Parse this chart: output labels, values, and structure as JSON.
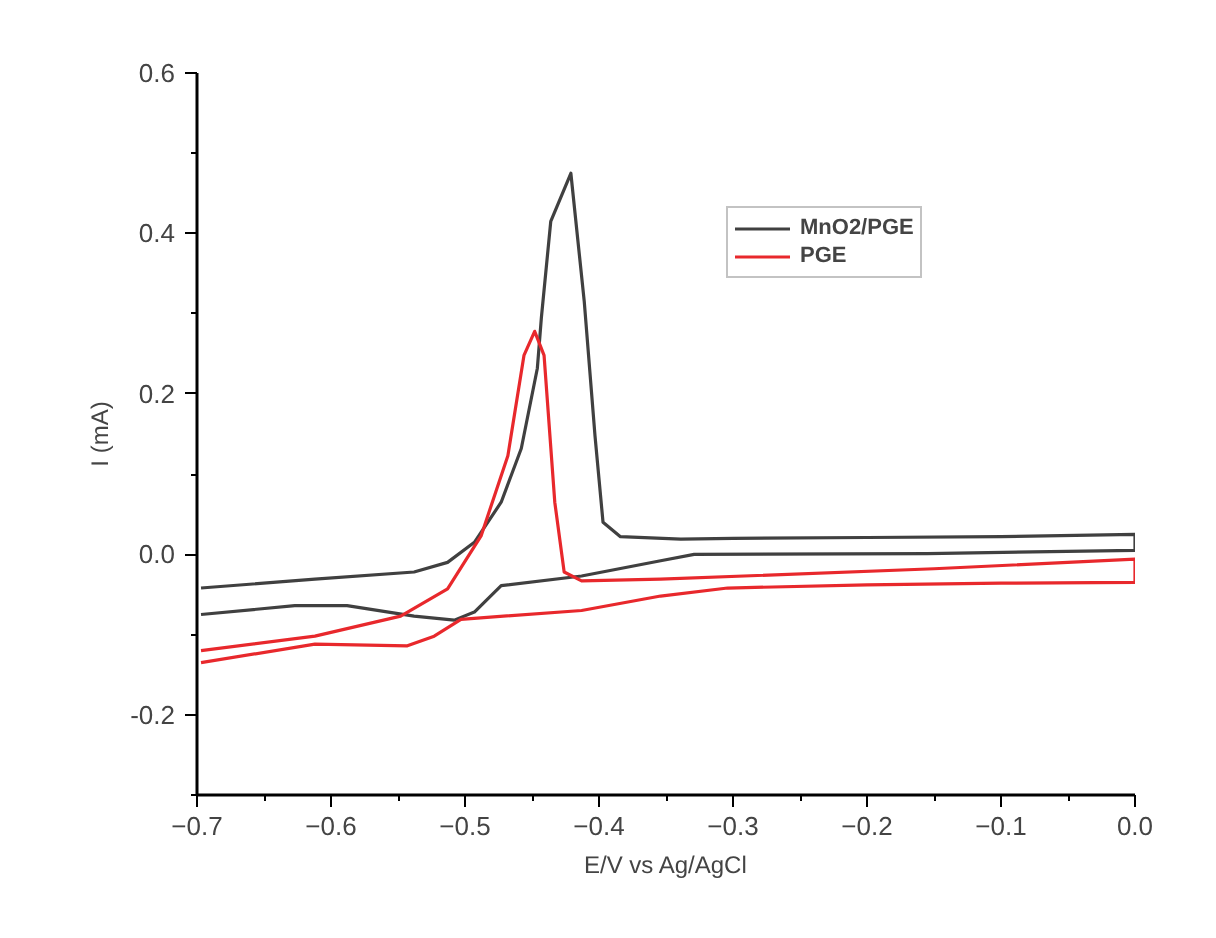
{
  "chart_data": {
    "type": "line",
    "xlabel": "E/V vs Ag/AgCl",
    "ylabel": "I (mA)",
    "xlim": [
      -0.7,
      0.0
    ],
    "ylim": [
      -0.3,
      0.6
    ],
    "xticks": [
      {
        "value": -0.7,
        "label": "−0.7"
      },
      {
        "value": -0.65,
        "label": null
      },
      {
        "value": -0.6,
        "label": "−0.6"
      },
      {
        "value": -0.55,
        "label": null
      },
      {
        "value": -0.5,
        "label": "−0.5"
      },
      {
        "value": -0.45,
        "label": null
      },
      {
        "value": -0.4,
        "label": "−0.4"
      },
      {
        "value": -0.35,
        "label": null
      },
      {
        "value": -0.3,
        "label": "−0.3"
      },
      {
        "value": -0.25,
        "label": null
      },
      {
        "value": -0.2,
        "label": "−0.2"
      },
      {
        "value": -0.15,
        "label": null
      },
      {
        "value": -0.1,
        "label": "−0.1"
      },
      {
        "value": -0.05,
        "label": null
      },
      {
        "value": 0.0,
        "label": "0.0"
      }
    ],
    "yticks": [
      {
        "value": -0.3,
        "label": null
      },
      {
        "value": -0.2,
        "label": "-0.2"
      },
      {
        "value": -0.1,
        "label": null
      },
      {
        "value": 0.0,
        "label": "0.0"
      },
      {
        "value": 0.1,
        "label": null
      },
      {
        "value": 0.2,
        "label": "0.2"
      },
      {
        "value": 0.3,
        "label": null
      },
      {
        "value": 0.4,
        "label": "0.4"
      },
      {
        "value": 0.5,
        "label": null
      },
      {
        "value": 0.6,
        "label": "0.6"
      }
    ],
    "grid": false,
    "legend": "top right",
    "line_style": "solid",
    "marker": "none",
    "series": [
      {
        "name": "MnO2/PGE",
        "color": "#404040",
        "x": [
          -0.697,
          -0.612,
          -0.538,
          -0.513,
          -0.493,
          -0.473,
          -0.458,
          -0.446,
          -0.443,
          -0.436,
          -0.421,
          -0.411,
          -0.403,
          -0.397,
          -0.384,
          -0.339,
          -0.3,
          -0.2,
          -0.1,
          0.0,
          0.0,
          -0.155,
          -0.329,
          -0.354,
          -0.413,
          -0.473,
          -0.493,
          -0.508,
          -0.538,
          -0.588,
          -0.627,
          -0.697
        ],
        "values": [
          -0.042,
          -0.031,
          -0.022,
          -0.01,
          0.015,
          0.065,
          0.132,
          0.232,
          0.295,
          0.415,
          0.475,
          0.315,
          0.148,
          0.04,
          0.022,
          0.019,
          0.02,
          0.021,
          0.022,
          0.025,
          0.005,
          0.001,
          0.0,
          -0.008,
          -0.027,
          -0.039,
          -0.072,
          -0.082,
          -0.077,
          -0.064,
          -0.064,
          -0.075
        ]
      },
      {
        "name": "PGE",
        "color": "#e8282c",
        "x": [
          -0.697,
          -0.612,
          -0.548,
          -0.513,
          -0.488,
          -0.468,
          -0.456,
          -0.448,
          -0.441,
          -0.433,
          -0.426,
          -0.413,
          -0.354,
          -0.15,
          0.0,
          0.0,
          -0.1,
          -0.2,
          -0.304,
          -0.354,
          -0.413,
          -0.503,
          -0.523,
          -0.543,
          -0.612,
          -0.697
        ],
        "values": [
          -0.12,
          -0.102,
          -0.077,
          -0.043,
          0.023,
          0.123,
          0.248,
          0.278,
          0.248,
          0.065,
          -0.022,
          -0.033,
          -0.031,
          -0.018,
          -0.006,
          -0.035,
          -0.036,
          -0.038,
          -0.042,
          -0.052,
          -0.07,
          -0.081,
          -0.102,
          -0.114,
          -0.112,
          -0.135
        ]
      }
    ]
  }
}
